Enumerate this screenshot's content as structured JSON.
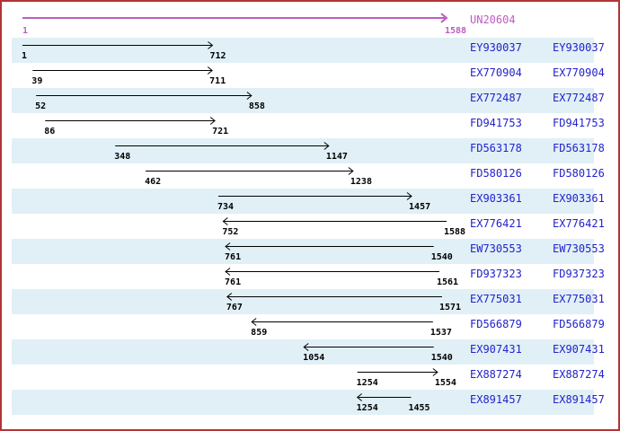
{
  "reference": {
    "label": "UN20604",
    "start_label": "1",
    "end_label": "1588",
    "start": 1,
    "end": 1588,
    "direction": "right"
  },
  "axis": {
    "min": 1,
    "max": 1588
  },
  "alignments": [
    {
      "accession": "EY930037",
      "start": 1,
      "end": 712,
      "direction": "right"
    },
    {
      "accession": "EX770904",
      "start": 39,
      "end": 711,
      "direction": "right"
    },
    {
      "accession": "EX772487",
      "start": 52,
      "end": 858,
      "direction": "right"
    },
    {
      "accession": "FD941753",
      "start": 86,
      "end": 721,
      "direction": "right"
    },
    {
      "accession": "FD563178",
      "start": 348,
      "end": 1147,
      "direction": "right"
    },
    {
      "accession": "FD580126",
      "start": 462,
      "end": 1238,
      "direction": "right"
    },
    {
      "accession": "EX903361",
      "start": 734,
      "end": 1457,
      "direction": "right"
    },
    {
      "accession": "EX776421",
      "start": 752,
      "end": 1588,
      "direction": "left"
    },
    {
      "accession": "EW730553",
      "start": 761,
      "end": 1540,
      "direction": "left"
    },
    {
      "accession": "FD937323",
      "start": 761,
      "end": 1561,
      "direction": "left"
    },
    {
      "accession": "EX775031",
      "start": 767,
      "end": 1571,
      "direction": "left"
    },
    {
      "accession": "FD566879",
      "start": 859,
      "end": 1537,
      "direction": "left"
    },
    {
      "accession": "EX907431",
      "start": 1054,
      "end": 1540,
      "direction": "left"
    },
    {
      "accession": "EX887274",
      "start": 1254,
      "end": 1554,
      "direction": "right"
    },
    {
      "accession": "EX891457",
      "start": 1254,
      "end": 1455,
      "direction": "left"
    }
  ],
  "colors": {
    "frame_border": "#b23535",
    "row_alt_bg": "#e1f0f6",
    "reference": "#c05cc0",
    "link": "#2222cc",
    "arrow": "#000000"
  }
}
